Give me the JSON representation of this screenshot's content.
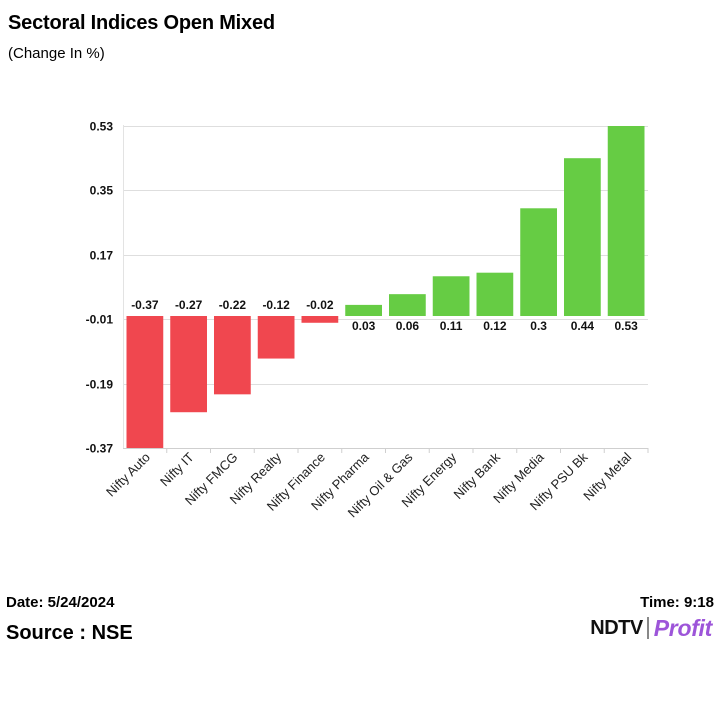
{
  "header": {
    "title": "Sectoral Indices Open Mixed",
    "subtitle": "(Change In %)"
  },
  "chart_data": {
    "type": "bar",
    "title": "Sectoral Indices Open Mixed",
    "ylabel": "(Change In %)",
    "xlabel": "",
    "categories": [
      "Nifty Auto",
      "Nifty IT",
      "Nifty FMCG",
      "Nifty Realty",
      "Nifty Finance",
      "Nifty Pharma",
      "Nifty Oil & Gas",
      "Nifty Energy",
      "Nifty Bank",
      "Nifty Media",
      "Nifty PSU Bk",
      "Nifty Metal"
    ],
    "values": [
      -0.37,
      -0.27,
      -0.22,
      -0.12,
      -0.02,
      0.03,
      0.06,
      0.11,
      0.12,
      0.3,
      0.44,
      0.53
    ],
    "value_labels": [
      "-0.37",
      "-0.27",
      "-0.22",
      "-0.12",
      "-0.02",
      "0.03",
      "0.06",
      "0.11",
      "0.12",
      "0.3",
      "0.44",
      "0.53"
    ],
    "yticks": [
      0.53,
      0.35,
      0.17,
      -0.01,
      -0.19,
      -0.37
    ],
    "ytick_labels": [
      "0.53",
      "0.35",
      "0.17",
      "-0.01",
      "-0.19",
      "-0.37"
    ],
    "ylim": [
      -0.37,
      0.53
    ],
    "grid": true,
    "colors": {
      "positive": "#66cc44",
      "negative": "#f0474f"
    }
  },
  "footer": {
    "date": "Date: 5/24/2024",
    "time": "Time: 9:18",
    "source": "Source : NSE",
    "logo_ndtv": "NDTV",
    "logo_profit": "Profit"
  }
}
